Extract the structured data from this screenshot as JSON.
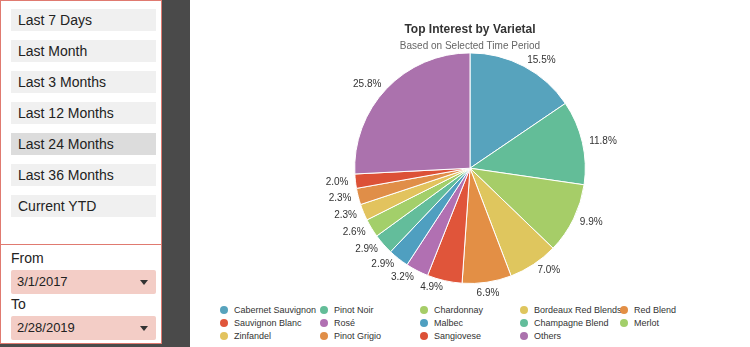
{
  "sidebar": {
    "buttons": [
      "Last 7 Days",
      "Last Month",
      "Last 3 Months",
      "Last 12 Months",
      "Last 24 Months",
      "Last 36 Months",
      "Current YTD"
    ],
    "selected": "Last 24 Months",
    "from_label": "From",
    "from_value": "3/1/2017",
    "to_label": "To",
    "to_value": "2/28/2019"
  },
  "chart_data": {
    "type": "pie",
    "title": "Top Interest by Varietal",
    "subtitle": "Based on Selected Time Period",
    "categories": [
      "Cabernet Sauvignon",
      "Pinot Noir",
      "Chardonnay",
      "Bordeaux Red Blends",
      "Red Blend",
      "Sauvignon Blanc",
      "Rosé",
      "Malbec",
      "Champagne Blend",
      "Merlot",
      "Zinfandel",
      "Pinot Grigio",
      "Sangiovese",
      "Others"
    ],
    "values": [
      15.5,
      11.8,
      9.9,
      7.0,
      6.9,
      4.9,
      3.2,
      2.9,
      2.9,
      2.6,
      2.3,
      2.3,
      2.0,
      25.8
    ],
    "value_labels": [
      "15.5%",
      "11.8%",
      "9.9%",
      "7.0%",
      "6.9%",
      "4.9%",
      "3.2%",
      "2.9%",
      "2.9%",
      "2.6%",
      "2.3%",
      "2.3%",
      "2.0%",
      "25.8%"
    ],
    "colors": [
      "#57a3bd",
      "#63bd98",
      "#a6cd68",
      "#dfc65e",
      "#e38f45",
      "#e0553a",
      "#b170b2",
      "#4f9fc0",
      "#63bd9b",
      "#a3cf6a",
      "#e2c35e",
      "#e08e48",
      "#dc5137",
      "#ab72ad"
    ],
    "data_labels": true,
    "legend": "bottom"
  }
}
